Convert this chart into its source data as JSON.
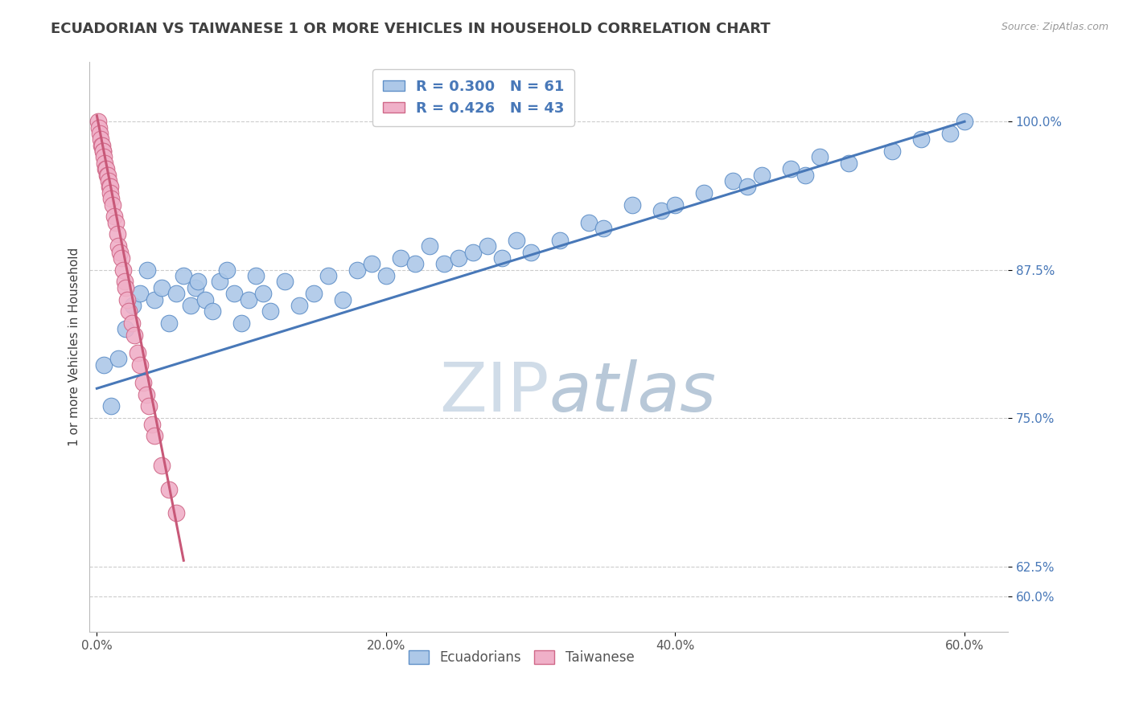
{
  "title": "ECUADORIAN VS TAIWANESE 1 OR MORE VEHICLES IN HOUSEHOLD CORRELATION CHART",
  "source_text": "Source: ZipAtlas.com",
  "xlabel_vals": [
    0.0,
    20.0,
    40.0,
    60.0
  ],
  "ylabel_vals": [
    60.0,
    62.5,
    75.0,
    87.5,
    100.0
  ],
  "ylabel_label": "1 or more Vehicles in Household",
  "legend_blue_label": "Ecuadorians",
  "legend_pink_label": "Taiwanese",
  "R_blue": 0.3,
  "N_blue": 61,
  "R_pink": 0.426,
  "N_pink": 43,
  "blue_color": "#adc8e8",
  "pink_color": "#f0b0c8",
  "blue_edge_color": "#6090c8",
  "pink_edge_color": "#d06888",
  "blue_line_color": "#4878b8",
  "pink_line_color": "#c85878",
  "title_color": "#404040",
  "legend_text_color": "#4878b8",
  "watermark_color": "#d0dce8",
  "xlim": [
    -0.5,
    63
  ],
  "ylim": [
    57,
    105
  ],
  "blue_scatter_x": [
    0.5,
    1.0,
    1.5,
    2.0,
    2.5,
    3.0,
    3.5,
    4.0,
    4.5,
    5.0,
    5.5,
    6.0,
    6.5,
    6.8,
    7.0,
    7.5,
    8.0,
    8.5,
    9.0,
    9.5,
    10.0,
    10.5,
    11.0,
    11.5,
    12.0,
    13.0,
    14.0,
    15.0,
    16.0,
    17.0,
    18.0,
    19.0,
    20.0,
    21.0,
    22.0,
    23.0,
    24.0,
    25.0,
    26.0,
    27.0,
    28.0,
    29.0,
    30.0,
    32.0,
    34.0,
    35.0,
    37.0,
    39.0,
    40.0,
    42.0,
    44.0,
    45.0,
    46.0,
    48.0,
    49.0,
    50.0,
    52.0,
    55.0,
    57.0,
    59.0,
    60.0
  ],
  "blue_scatter_y": [
    79.5,
    76.0,
    80.0,
    82.5,
    84.5,
    85.5,
    87.5,
    85.0,
    86.0,
    83.0,
    85.5,
    87.0,
    84.5,
    86.0,
    86.5,
    85.0,
    84.0,
    86.5,
    87.5,
    85.5,
    83.0,
    85.0,
    87.0,
    85.5,
    84.0,
    86.5,
    84.5,
    85.5,
    87.0,
    85.0,
    87.5,
    88.0,
    87.0,
    88.5,
    88.0,
    89.5,
    88.0,
    88.5,
    89.0,
    89.5,
    88.5,
    90.0,
    89.0,
    90.0,
    91.5,
    91.0,
    93.0,
    92.5,
    93.0,
    94.0,
    95.0,
    94.5,
    95.5,
    96.0,
    95.5,
    97.0,
    96.5,
    97.5,
    98.5,
    99.0,
    100.0
  ],
  "pink_scatter_x": [
    0.1,
    0.15,
    0.2,
    0.25,
    0.3,
    0.35,
    0.4,
    0.45,
    0.5,
    0.55,
    0.6,
    0.65,
    0.7,
    0.75,
    0.8,
    0.85,
    0.9,
    0.95,
    1.0,
    1.1,
    1.2,
    1.3,
    1.4,
    1.5,
    1.6,
    1.7,
    1.8,
    1.9,
    2.0,
    2.1,
    2.2,
    2.4,
    2.6,
    2.8,
    3.0,
    3.2,
    3.4,
    3.6,
    3.8,
    4.0,
    4.5,
    5.0,
    5.5
  ],
  "pink_scatter_y": [
    100.0,
    99.5,
    99.0,
    98.5,
    98.0,
    98.0,
    97.5,
    97.5,
    97.0,
    96.5,
    96.0,
    96.0,
    95.5,
    95.5,
    95.0,
    94.5,
    94.5,
    94.0,
    93.5,
    93.0,
    92.0,
    91.5,
    90.5,
    89.5,
    89.0,
    88.5,
    87.5,
    86.5,
    86.0,
    85.0,
    84.0,
    83.0,
    82.0,
    80.5,
    79.5,
    78.0,
    77.0,
    76.0,
    74.5,
    73.5,
    71.0,
    69.0,
    67.0
  ],
  "blue_line_x0": 0.0,
  "blue_line_y0": 77.5,
  "blue_line_x1": 60.0,
  "blue_line_y1": 100.0,
  "pink_line_x0": 0.0,
  "pink_line_y0": 100.5,
  "pink_line_x1": 6.0,
  "pink_line_y1": 63.0
}
